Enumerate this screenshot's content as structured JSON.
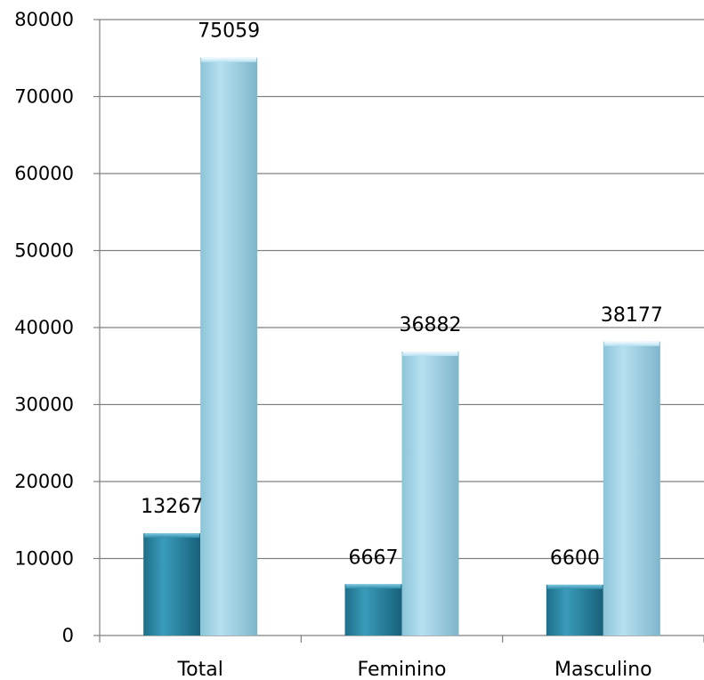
{
  "chart_data": {
    "type": "bar",
    "title": "",
    "xlabel": "",
    "ylabel": "",
    "categories": [
      "Total",
      "Feminino",
      "Masculino"
    ],
    "series": [
      {
        "values": [
          13267,
          6667,
          6600
        ],
        "color": "#2E8BA8"
      },
      {
        "values": [
          75059,
          36882,
          38177
        ],
        "color": "#A8D6E8"
      }
    ],
    "ylim": [
      0,
      80000
    ],
    "yticks": [
      0,
      10000,
      20000,
      30000,
      40000,
      50000,
      60000,
      70000,
      80000
    ],
    "grid": true,
    "legend": "none",
    "data_labels": true
  }
}
